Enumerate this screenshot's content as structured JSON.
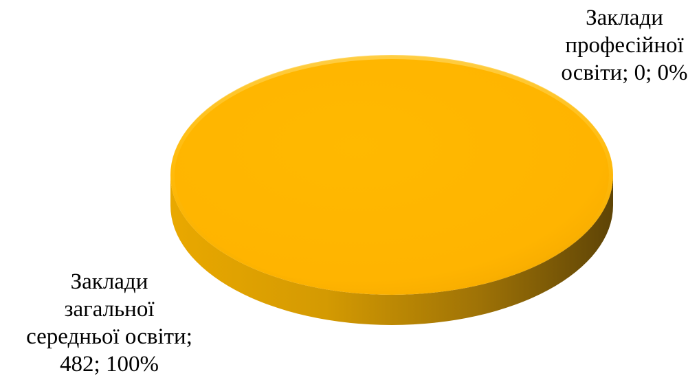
{
  "chart_data": {
    "type": "pie",
    "style": "3d",
    "categories": [
      "Заклади загальної середньої освіти",
      "Заклади професійної освіти"
    ],
    "values": [
      482,
      0
    ],
    "percents": [
      "100%",
      "0%"
    ],
    "data_labels": [
      [
        "Заклади",
        "загальної",
        "середньої освіти;",
        "482; 100%"
      ],
      [
        "Заклади",
        "професійної",
        "освіти; 0; 0%"
      ]
    ],
    "colors": [
      "#FFB700",
      "#5B9BD5"
    ],
    "title": "",
    "legend": "none"
  }
}
